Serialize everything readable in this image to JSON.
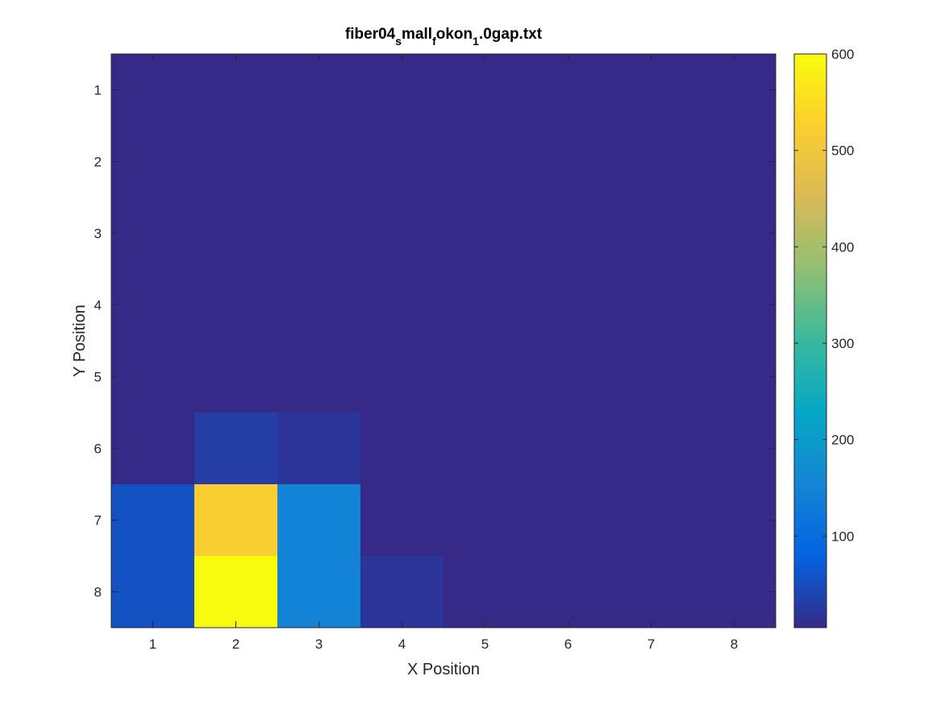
{
  "chart_data": {
    "type": "heatmap",
    "title": {
      "base": "fiber04",
      "sub1": "s",
      "mid1": "mall",
      "sub2": "f",
      "mid2": "okon",
      "sub3": "1",
      "tail": ".0gap.txt"
    },
    "xlabel": "X Position",
    "ylabel": "Y Position",
    "x_ticks": [
      "1",
      "2",
      "3",
      "4",
      "5",
      "6",
      "7",
      "8"
    ],
    "y_ticks": [
      "1",
      "2",
      "3",
      "4",
      "5",
      "6",
      "7",
      "8"
    ],
    "y_direction": "reversed",
    "grid": false,
    "colorbar": {
      "min": 5,
      "max": 600,
      "ticks": [
        100,
        200,
        300,
        400,
        500,
        600
      ],
      "tick_labels": [
        "100",
        "200",
        "300",
        "400",
        "500",
        "600"
      ],
      "colormap": "parula",
      "position": "right"
    },
    "values": [
      [
        5,
        5,
        5,
        5,
        5,
        5,
        5,
        5
      ],
      [
        5,
        5,
        5,
        5,
        5,
        5,
        5,
        5
      ],
      [
        5,
        5,
        5,
        5,
        5,
        5,
        5,
        5
      ],
      [
        5,
        5,
        5,
        5,
        5,
        5,
        5,
        5
      ],
      [
        5,
        5,
        5,
        5,
        5,
        5,
        5,
        5
      ],
      [
        5,
        30,
        20,
        5,
        5,
        5,
        5,
        5
      ],
      [
        55,
        520,
        150,
        5,
        5,
        5,
        5,
        5
      ],
      [
        55,
        600,
        150,
        20,
        5,
        5,
        5,
        5
      ]
    ]
  }
}
